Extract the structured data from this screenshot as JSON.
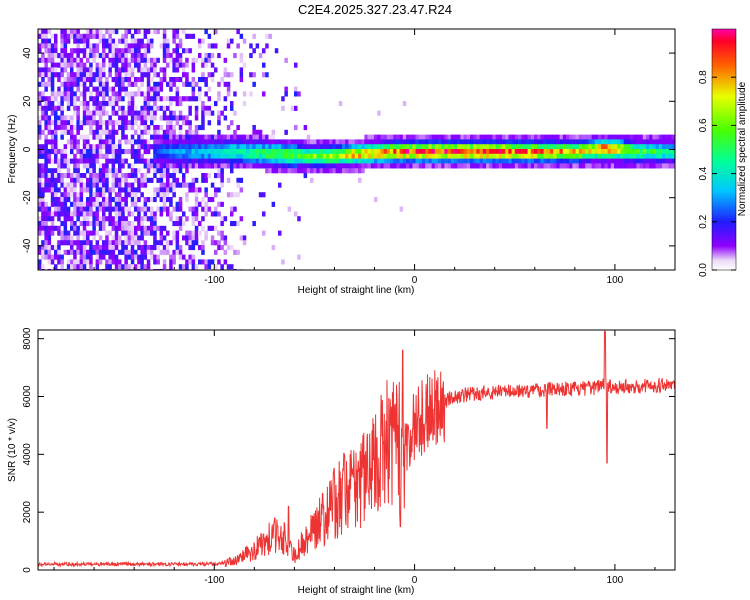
{
  "title": "C2E4.2025.327.23.47.R24",
  "chart_data": [
    {
      "type": "heatmap",
      "xlabel": "Height of straight line (km)",
      "ylabel": "Frequency (Hz)",
      "xlim": [
        -188,
        130
      ],
      "ylim": [
        -50,
        50
      ],
      "xticks": [
        -100,
        0,
        100
      ],
      "xtick_labels": [
        "-100",
        "0",
        "100"
      ],
      "yticks": [
        -40,
        -20,
        0,
        20,
        40
      ],
      "ytick_labels": [
        "-40",
        "-20",
        "0",
        "20",
        "40"
      ],
      "colorbar": {
        "label": "Normalized spectral amplitude",
        "range": [
          0.0,
          1.0
        ],
        "ticks": [
          0.0,
          0.2,
          0.4,
          0.6,
          0.8
        ],
        "tick_labels": [
          "0.0",
          "0.2",
          "0.4",
          "0.6",
          "0.8"
        ]
      },
      "ridge": {
        "x": [
          -130,
          -110,
          -90,
          -70,
          -50,
          -30,
          -10,
          0,
          20,
          40,
          60,
          80,
          90,
          95,
          100,
          110,
          130
        ],
        "freq": [
          0,
          0,
          0,
          -1,
          -2,
          -1,
          0,
          0,
          0,
          0,
          0,
          0,
          1,
          1,
          1,
          0,
          0
        ],
        "peak_amplitude": [
          0.25,
          0.35,
          0.45,
          0.55,
          0.65,
          0.8,
          0.9,
          0.95,
          0.95,
          0.95,
          0.9,
          0.8,
          0.85,
          0.95,
          0.85,
          0.6,
          0.5
        ]
      }
    },
    {
      "type": "line",
      "xlabel": "Height of straight line (km)",
      "ylabel": "SNR (10 * v/v)",
      "xlim": [
        -188,
        130
      ],
      "ylim": [
        0,
        8300
      ],
      "xticks": [
        -100,
        0,
        100
      ],
      "xtick_labels": [
        "-100",
        "0",
        "100"
      ],
      "yticks": [
        0,
        2000,
        4000,
        6000,
        8000
      ],
      "ytick_labels": [
        "0",
        "2000",
        "4000",
        "6000",
        "8000"
      ],
      "series": [
        {
          "name": "SNR",
          "color": "#ee3333",
          "x": [
            -188,
            -150,
            -120,
            -100,
            -90,
            -80,
            -70,
            -65,
            -60,
            -50,
            -40,
            -30,
            -20,
            -15,
            -10,
            -5,
            0,
            10,
            20,
            30,
            40,
            50,
            60,
            70,
            80,
            90,
            95,
            100,
            110,
            120,
            130
          ],
          "y": [
            200,
            200,
            200,
            210,
            300,
            700,
            1200,
            1100,
            500,
            1500,
            2300,
            3000,
            3500,
            4200,
            4500,
            4200,
            5000,
            5700,
            6000,
            6100,
            6150,
            6200,
            6200,
            6300,
            6250,
            6300,
            6500,
            6300,
            6350,
            6400,
            6400
          ]
        }
      ],
      "spikes": [
        {
          "x": -6,
          "y": 7600
        },
        {
          "x": -7,
          "y": 1500
        },
        {
          "x": 95,
          "y": 8250
        },
        {
          "x": 96,
          "y": 3700
        },
        {
          "x": 66,
          "y": 4900
        },
        {
          "x": -63,
          "y": 2200
        }
      ]
    }
  ]
}
